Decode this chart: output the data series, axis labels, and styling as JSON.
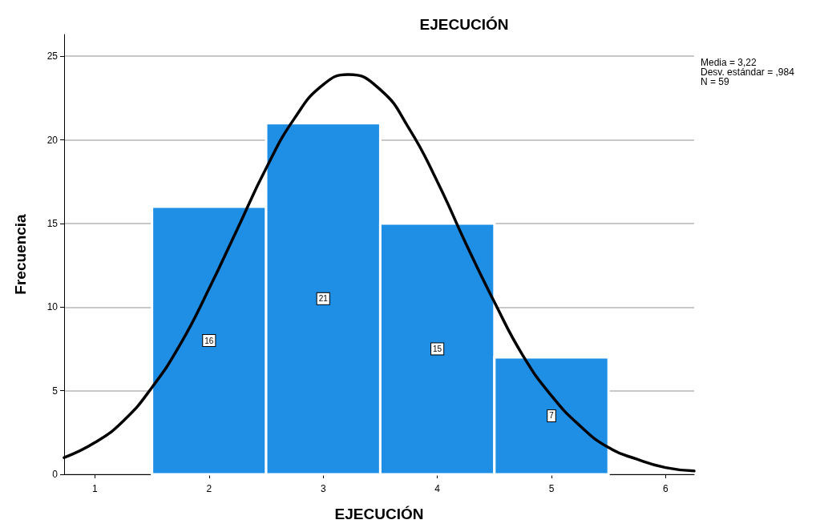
{
  "chart_data": {
    "type": "histogram",
    "title": "EJECUCIÓN",
    "xlabel": "EJECUCIÓN",
    "ylabel": "Frecuencia",
    "bins": [
      1.5,
      2.5,
      3.5,
      4.5,
      5.5
    ],
    "values": [
      16,
      21,
      15,
      7
    ],
    "color": "#1f8fe6",
    "value_labels": [
      "16",
      "21",
      "15",
      "7"
    ],
    "series": [
      {
        "type": "line",
        "color": "#000000",
        "x": [
          0.73,
          1,
          1.25,
          1.5,
          1.75,
          2,
          2.25,
          2.5,
          2.75,
          3,
          3.22,
          3.5,
          3.75,
          4,
          4.25,
          4.5,
          4.75,
          5,
          5.25,
          5.5,
          5.75,
          6,
          6.25
        ],
        "values": [
          1.0,
          1.9,
          3.2,
          5.2,
          7.8,
          11.1,
          14.7,
          18.3,
          21.3,
          23.3,
          23.9,
          23.0,
          20.7,
          17.5,
          13.8,
          10.3,
          7.1,
          4.7,
          2.9,
          1.6,
          0.9,
          0.4,
          0.2
        ]
      }
    ],
    "xlim": [
      0.73,
      6.25
    ],
    "xticks": [
      1,
      2,
      3,
      4,
      5,
      6
    ],
    "ylim": [
      0,
      26.3
    ],
    "yticks": [
      0,
      5,
      10,
      15,
      20,
      25
    ],
    "grid": "y",
    "marker": "none",
    "line_style": "solid",
    "annotations": [
      "Media = 3,22",
      "Desv. estándar = ,984",
      "N = 59"
    ]
  }
}
